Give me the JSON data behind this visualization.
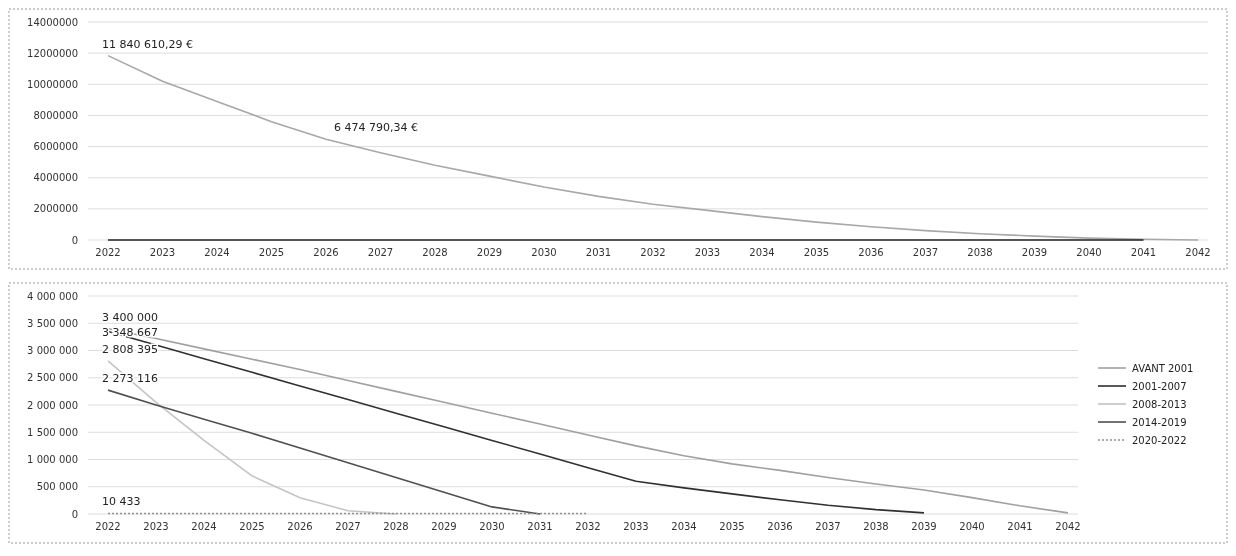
{
  "chart_data": [
    {
      "type": "line",
      "categories": [
        "2022",
        "2023",
        "2024",
        "2025",
        "2026",
        "2027",
        "2028",
        "2029",
        "2030",
        "2031",
        "2032",
        "2033",
        "2034",
        "2035",
        "2036",
        "2037",
        "2038",
        "2039",
        "2040",
        "2041",
        "2042"
      ],
      "ylim": [
        0,
        14000000
      ],
      "yticks": [
        0,
        2000000,
        4000000,
        6000000,
        8000000,
        10000000,
        12000000,
        14000000
      ],
      "grid": "y",
      "legend": false,
      "series": [
        {
          "color": "#a8a8a8",
          "values": [
            11840610.29,
            10200000,
            8900000,
            7600000,
            6474790.34,
            5600000,
            4800000,
            4100000,
            3400000,
            2800000,
            2300000,
            1900000,
            1500000,
            1150000,
            850000,
            600000,
            400000,
            250000,
            120000,
            50000,
            0
          ],
          "value_labels": [
            "11 840 610,29 €",
            null,
            null,
            null,
            "6 474 790,34 €",
            null,
            null,
            null,
            null,
            null,
            null,
            null,
            null,
            null,
            null,
            null,
            null,
            null,
            null,
            null,
            null
          ]
        },
        {
          "color": "#202020",
          "values": [
            0,
            0,
            0,
            0,
            0,
            0,
            0,
            0,
            0,
            0,
            0,
            0,
            0,
            0,
            0,
            0,
            0,
            0,
            0,
            0,
            null
          ]
        }
      ]
    },
    {
      "type": "line",
      "categories": [
        "2022",
        "2023",
        "2024",
        "2025",
        "2026",
        "2027",
        "2028",
        "2029",
        "2030",
        "2031",
        "2032",
        "2033",
        "2034",
        "2035",
        "2036",
        "2037",
        "2038",
        "2039",
        "2040",
        "2041",
        "2042"
      ],
      "ylim": [
        0,
        4000000
      ],
      "yticks": [
        {
          "value": 0,
          "label": "0"
        },
        {
          "value": 500000,
          "label": "500 000"
        },
        {
          "value": 1000000,
          "label": "1 000 000"
        },
        {
          "value": 1500000,
          "label": "1 500 000"
        },
        {
          "value": 2000000,
          "label": "2 000 000"
        },
        {
          "value": 2500000,
          "label": "2 500 000"
        },
        {
          "value": 3000000,
          "label": "3 000 000"
        },
        {
          "value": 3500000,
          "label": "3 500 000"
        },
        {
          "value": 4000000,
          "label": "4 000 000"
        }
      ],
      "grid": "y",
      "legend": "right",
      "series": [
        {
          "name": "AVANT 2001",
          "color": "#a0a0a0",
          "values": [
            3400000,
            3220000,
            3030000,
            2840000,
            2650000,
            2450000,
            2250000,
            2050000,
            1850000,
            1650000,
            1450000,
            1250000,
            1070000,
            920000,
            800000,
            670000,
            550000,
            440000,
            300000,
            150000,
            20000
          ],
          "value_labels": [
            "3 400 000",
            null,
            null,
            null,
            null,
            null,
            null,
            null,
            null,
            null,
            null,
            null,
            null,
            null,
            null,
            null,
            null,
            null,
            null,
            null,
            null
          ]
        },
        {
          "name": "2001-2007",
          "color": "#303030",
          "values": [
            3348667,
            3100000,
            2850000,
            2600000,
            2350000,
            2100000,
            1850000,
            1600000,
            1350000,
            1100000,
            850000,
            600000,
            480000,
            370000,
            260000,
            160000,
            80000,
            20000,
            null,
            null,
            null
          ],
          "value_labels": [
            "3 348 667",
            null,
            null,
            null,
            null,
            null,
            null,
            null,
            null,
            null,
            null,
            null,
            null,
            null,
            null,
            null,
            null,
            null,
            null,
            null,
            null
          ]
        },
        {
          "name": "2008-2013",
          "color": "#c4c4c4",
          "values": [
            2808395,
            2050000,
            1350000,
            700000,
            300000,
            60000,
            0,
            null,
            null,
            null,
            null,
            null,
            null,
            null,
            null,
            null,
            null,
            null,
            null,
            null,
            null
          ],
          "value_labels": [
            "2 808 395",
            null,
            null,
            null,
            null,
            null,
            null,
            null,
            null,
            null,
            null,
            null,
            null,
            null,
            null,
            null,
            null,
            null,
            null,
            null,
            null
          ]
        },
        {
          "name": "2014-2019",
          "color": "#505050",
          "values": [
            2273116,
            2000000,
            1740000,
            1480000,
            1210000,
            940000,
            670000,
            400000,
            130000,
            0,
            null,
            null,
            null,
            null,
            null,
            null,
            null,
            null,
            null,
            null,
            null
          ],
          "value_labels": [
            "2 273 116",
            null,
            null,
            null,
            null,
            null,
            null,
            null,
            null,
            null,
            null,
            null,
            null,
            null,
            null,
            null,
            null,
            null,
            null,
            null,
            null
          ]
        },
        {
          "name": "2020-2022",
          "color": "#909090",
          "line_style": "dotted",
          "values": [
            10433,
            10000,
            10000,
            10000,
            10000,
            10000,
            10000,
            10000,
            10000,
            10000,
            10000,
            null,
            null,
            null,
            null,
            null,
            null,
            null,
            null,
            null,
            null
          ],
          "value_labels": [
            "10 433",
            null,
            null,
            null,
            null,
            null,
            null,
            null,
            null,
            null,
            null,
            null,
            null,
            null,
            null,
            null,
            null,
            null,
            null,
            null,
            null
          ]
        }
      ]
    }
  ]
}
